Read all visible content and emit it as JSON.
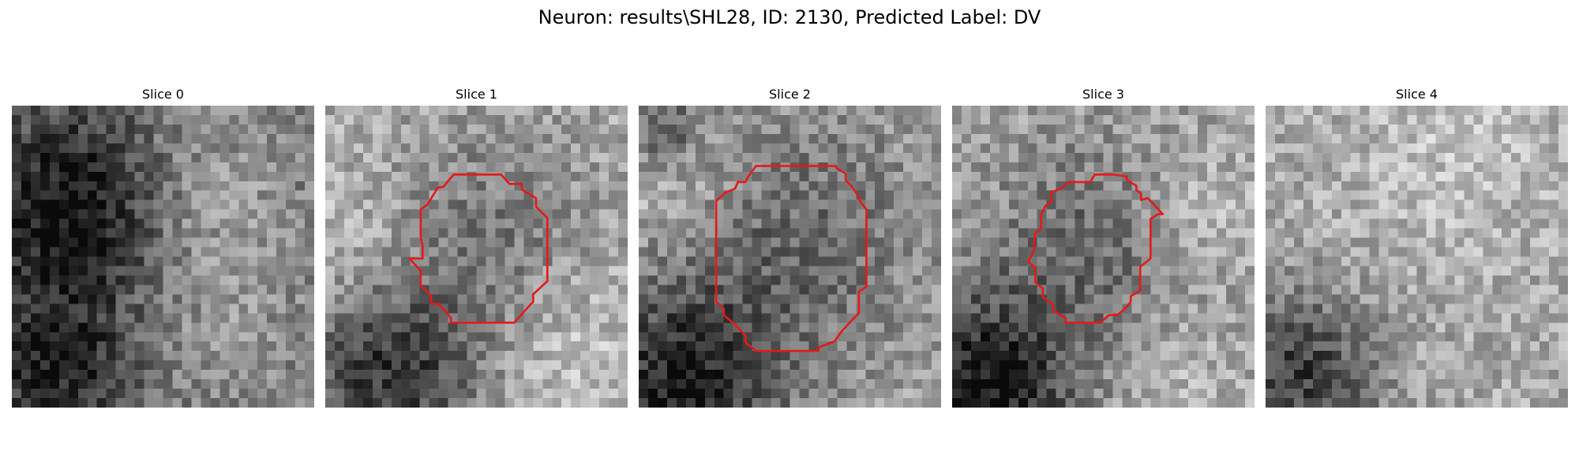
{
  "figure": {
    "title": "Neuron: results\\SHL28, ID: 2130, Predicted Label: DV"
  },
  "panels": [
    {
      "title": "Slice 0",
      "has_contour": false
    },
    {
      "title": "Slice 1",
      "has_contour": true
    },
    {
      "title": "Slice 2",
      "has_contour": true
    },
    {
      "title": "Slice 3",
      "has_contour": true
    },
    {
      "title": "Slice 4",
      "has_contour": false
    }
  ],
  "colors": {
    "contour": "#e31a1c",
    "colormap": "gray"
  }
}
